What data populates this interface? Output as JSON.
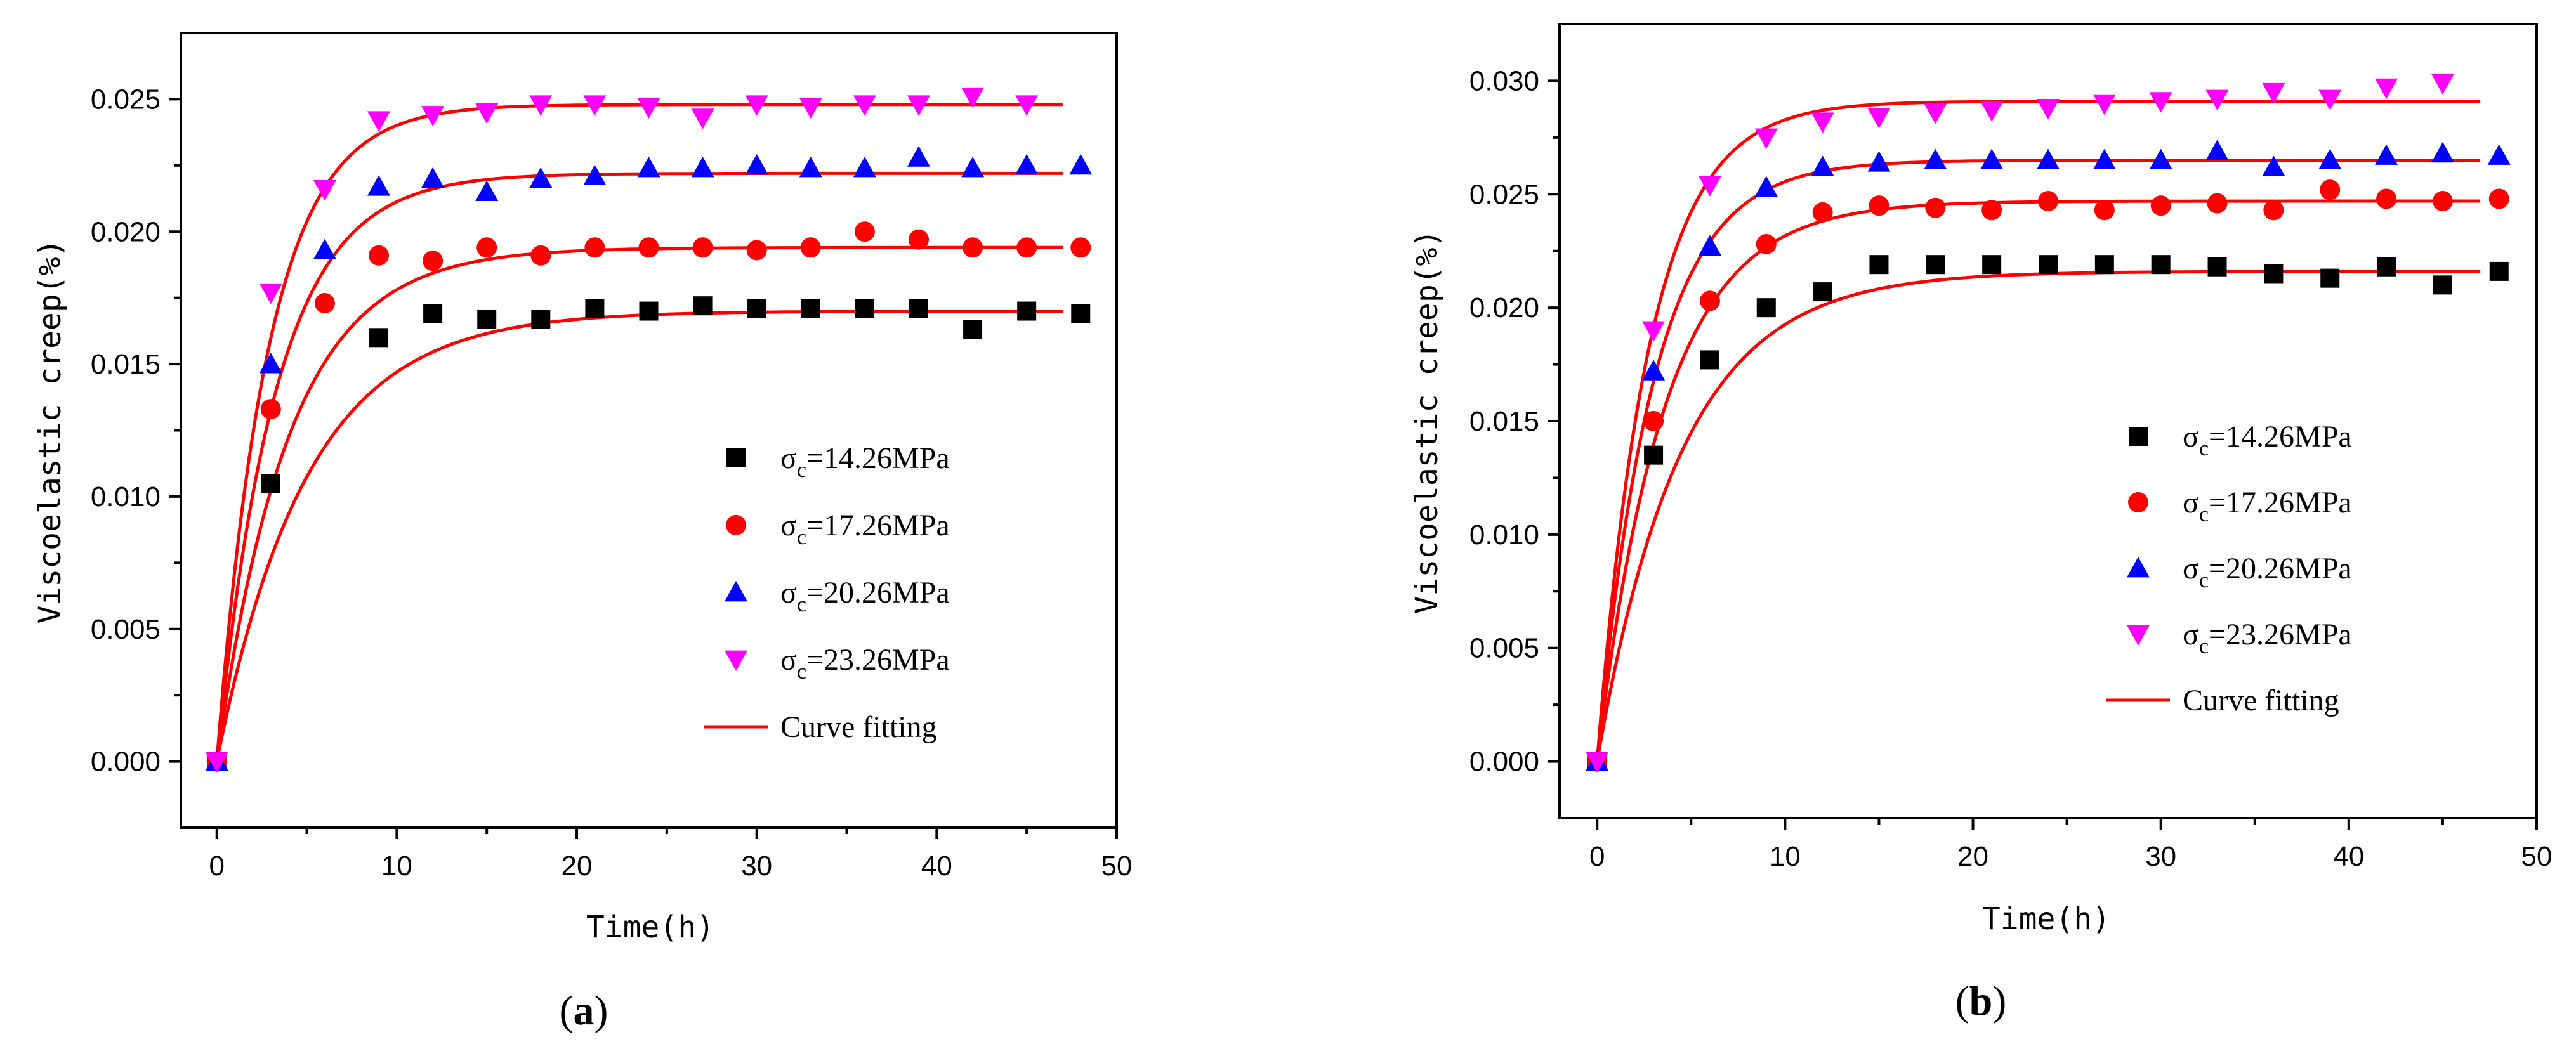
{
  "chart_data": [
    {
      "type": "scatter",
      "panel_label": {
        "open": "(",
        "letter": "a",
        "close": ")"
      },
      "xlabel": "Time(h)",
      "ylabel": "Viscoelastic creep(%)",
      "xlim": [
        -2,
        50
      ],
      "ylim": [
        -0.0025,
        0.0275
      ],
      "xticks": [
        0,
        10,
        20,
        30,
        40,
        50
      ],
      "yticks": [
        0.0,
        0.005,
        0.01,
        0.015,
        0.02,
        0.025
      ],
      "ytick_labels": [
        "0.000",
        "0.005",
        "0.010",
        "0.015",
        "0.020",
        "0.025"
      ],
      "fit_label": "Curve fitting",
      "fit_end": 47,
      "series": [
        {
          "name": "σc=14.26MPa",
          "sym": "σ",
          "sub": "c",
          "rest": "=14.26MPa",
          "marker": "square",
          "color": "#000000",
          "fit": [
            0.017,
            5.0
          ],
          "x": [
            0,
            3,
            9,
            12,
            15,
            18,
            21,
            24,
            27,
            30,
            33,
            36,
            39,
            42,
            45,
            48
          ],
          "y": [
            0,
            0.0105,
            0.016,
            0.0169,
            0.0167,
            0.0167,
            0.0171,
            0.017,
            0.0172,
            0.0171,
            0.0171,
            0.0171,
            0.0171,
            0.0163,
            0.017,
            0.0169
          ]
        },
        {
          "name": "σc=17.26MPa",
          "sym": "σ",
          "sub": "c",
          "rest": "=17.26MPa",
          "marker": "circle",
          "color": "#ff0000",
          "fit": [
            0.0194,
            4.0
          ],
          "x": [
            0,
            3,
            6,
            9,
            12,
            15,
            18,
            21,
            24,
            27,
            30,
            33,
            36,
            39,
            42,
            45,
            48
          ],
          "y": [
            0,
            0.0133,
            0.0173,
            0.0191,
            0.0189,
            0.0194,
            0.0191,
            0.0194,
            0.0194,
            0.0194,
            0.0193,
            0.0194,
            0.02,
            0.0197,
            0.0194,
            0.0194,
            0.0194
          ]
        },
        {
          "name": "σc=20.26MPa",
          "sym": "σ",
          "sub": "c",
          "rest": "=20.26MPa",
          "marker": "triangle",
          "color": "#0000ff",
          "fit": [
            0.0222,
            3.3
          ],
          "x": [
            0,
            3,
            6,
            9,
            12,
            15,
            18,
            21,
            24,
            27,
            30,
            33,
            36,
            39,
            42,
            45,
            48
          ],
          "y": [
            0,
            0.015,
            0.0193,
            0.0217,
            0.022,
            0.0215,
            0.022,
            0.0221,
            0.0224,
            0.0224,
            0.0225,
            0.0224,
            0.0224,
            0.0228,
            0.0224,
            0.0225,
            0.0225
          ]
        },
        {
          "name": "σc=23.26MPa",
          "sym": "σ",
          "sub": "c",
          "rest": "=23.26MPa",
          "marker": "triangle-down",
          "color": "#ff00ff",
          "fit": [
            0.0248,
            2.9
          ],
          "x": [
            0,
            3,
            6,
            9,
            12,
            15,
            18,
            21,
            24,
            27,
            30,
            33,
            36,
            39,
            42,
            45
          ],
          "y": [
            0,
            0.0177,
            0.0216,
            0.0242,
            0.0244,
            0.0245,
            0.0248,
            0.0248,
            0.0247,
            0.0243,
            0.0248,
            0.0247,
            0.0248,
            0.0248,
            0.0251,
            0.0248
          ]
        }
      ]
    },
    {
      "type": "scatter",
      "panel_label": {
        "open": "(",
        "letter": "b",
        "close": ")"
      },
      "xlabel": "Time(h)",
      "ylabel": "Viscoelastic creep(%)",
      "xlim": [
        -2,
        50
      ],
      "ylim": [
        -0.0025,
        0.0325
      ],
      "xticks": [
        0,
        10,
        20,
        30,
        40,
        50
      ],
      "yticks": [
        0.0,
        0.005,
        0.01,
        0.015,
        0.02,
        0.025,
        0.03
      ],
      "ytick_labels": [
        "0.000",
        "0.005",
        "0.010",
        "0.015",
        "0.020",
        "0.025",
        "0.030"
      ],
      "fit_label": "Curve fitting",
      "fit_end": 47,
      "series": [
        {
          "name": "σc=14.26MPa",
          "sym": "σ",
          "sub": "c",
          "rest": "=14.26MPa",
          "marker": "square",
          "color": "#000000",
          "fit": [
            0.0216,
            4.5
          ],
          "x": [
            0,
            3,
            6,
            9,
            12,
            15,
            18,
            21,
            24,
            27,
            30,
            33,
            36,
            39,
            42,
            45,
            48
          ],
          "y": [
            0,
            0.0135,
            0.0177,
            0.02,
            0.0207,
            0.0219,
            0.0219,
            0.0219,
            0.0219,
            0.0219,
            0.0219,
            0.0218,
            0.0215,
            0.0213,
            0.0218,
            0.021,
            0.0216
          ]
        },
        {
          "name": "σc=17.26MPa",
          "sym": "σ",
          "sub": "c",
          "rest": "=17.26MPa",
          "marker": "circle",
          "color": "#ff0000",
          "fit": [
            0.0247,
            3.6
          ],
          "x": [
            0,
            3,
            6,
            9,
            12,
            15,
            18,
            21,
            24,
            27,
            30,
            33,
            36,
            39,
            42,
            45,
            48
          ],
          "y": [
            0,
            0.015,
            0.0203,
            0.0228,
            0.0242,
            0.0245,
            0.0244,
            0.0243,
            0.0247,
            0.0243,
            0.0245,
            0.0246,
            0.0243,
            0.0252,
            0.0248,
            0.0247,
            0.0248
          ]
        },
        {
          "name": "σc=20.26MPa",
          "sym": "σ",
          "sub": "c",
          "rest": "=20.26MPa",
          "marker": "triangle",
          "color": "#0000ff",
          "fit": [
            0.0265,
            3.0
          ],
          "x": [
            0,
            3,
            6,
            9,
            12,
            15,
            18,
            21,
            24,
            27,
            30,
            33,
            36,
            39,
            42,
            45,
            48
          ],
          "y": [
            0,
            0.0172,
            0.0227,
            0.0253,
            0.0262,
            0.0264,
            0.0265,
            0.0265,
            0.0265,
            0.0265,
            0.0265,
            0.0269,
            0.0262,
            0.0265,
            0.0267,
            0.0268,
            0.0267
          ]
        },
        {
          "name": "σc=23.26MPa",
          "sym": "σ",
          "sub": "c",
          "rest": "=23.26MPa",
          "marker": "triangle-down",
          "color": "#ff00ff",
          "fit": [
            0.0291,
            2.8
          ],
          "x": [
            0,
            3,
            6,
            9,
            12,
            15,
            18,
            21,
            24,
            27,
            30,
            33,
            36,
            39,
            42,
            45
          ],
          "y": [
            0,
            0.019,
            0.0254,
            0.0275,
            0.0282,
            0.0284,
            0.0286,
            0.0287,
            0.0288,
            0.029,
            0.0291,
            0.0292,
            0.0295,
            0.0292,
            0.0297,
            0.0299
          ]
        }
      ]
    }
  ]
}
